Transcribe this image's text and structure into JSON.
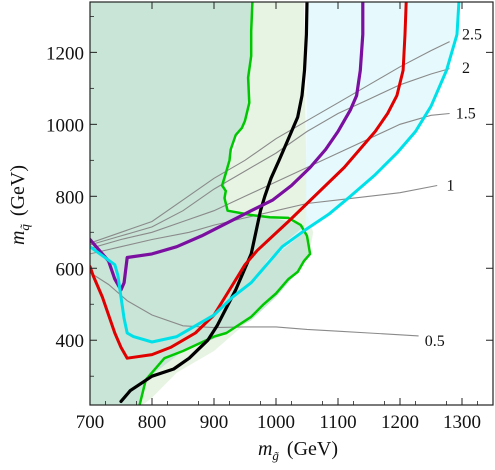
{
  "chart_data": {
    "type": "exclusion-contour",
    "title": "",
    "xlabel": {
      "symbol": "m",
      "sub": "g̃",
      "unit": "(GeV)"
    },
    "ylabel": {
      "symbol": "m",
      "sub": "q̃",
      "unit": "(GeV)"
    },
    "xlim": [
      700,
      1350
    ],
    "ylim": [
      220,
      1340
    ],
    "x_ticks": [
      700,
      800,
      900,
      1000,
      1100,
      1200,
      1300
    ],
    "y_ticks": [
      400,
      600,
      800,
      1000,
      1200
    ],
    "grid": false,
    "regions": [
      {
        "fill": "#9bd0b6",
        "opacity": 0.55,
        "points": [
          [
            700,
            1340
          ],
          [
            962,
            1340
          ],
          [
            960,
            1190
          ],
          [
            957,
            1060
          ],
          [
            950,
            1010
          ],
          [
            935,
            970
          ],
          [
            925,
            900
          ],
          [
            917,
            820
          ],
          [
            922,
            760
          ],
          [
            990,
            742
          ],
          [
            1045,
            720
          ],
          [
            1055,
            640
          ],
          [
            1035,
            590
          ],
          [
            1000,
            520
          ],
          [
            960,
            455
          ],
          [
            910,
            410
          ],
          [
            850,
            370
          ],
          [
            790,
            290
          ],
          [
            780,
            220
          ],
          [
            700,
            220
          ]
        ]
      },
      {
        "fill": "#cce7c2",
        "opacity": 0.45,
        "points": [
          [
            700,
            220
          ],
          [
            785,
            220
          ],
          [
            800,
            240
          ],
          [
            840,
            310
          ],
          [
            900,
            370
          ],
          [
            960,
            460
          ],
          [
            1000,
            530
          ],
          [
            1035,
            600
          ],
          [
            1055,
            650
          ],
          [
            1060,
            700
          ],
          [
            1050,
            750
          ],
          [
            1045,
            1340
          ],
          [
            962,
            1340
          ],
          [
            960,
            1190
          ],
          [
            950,
            1010
          ],
          [
            925,
            900
          ],
          [
            917,
            820
          ],
          [
            922,
            760
          ],
          [
            990,
            742
          ],
          [
            1040,
            720
          ],
          [
            1050,
            640
          ],
          [
            1030,
            590
          ],
          [
            1000,
            530
          ],
          [
            960,
            460
          ],
          [
            910,
            410
          ],
          [
            850,
            370
          ],
          [
            790,
            290
          ],
          [
            780,
            220
          ]
        ]
      },
      {
        "fill": "#e2f8fb",
        "opacity": 0.85,
        "points": [
          [
            1050,
            1340
          ],
          [
            1295,
            1340
          ],
          [
            1292,
            1250
          ],
          [
            1275,
            1150
          ],
          [
            1250,
            1050
          ],
          [
            1225,
            980
          ],
          [
            1195,
            920
          ],
          [
            1160,
            860
          ],
          [
            1120,
            800
          ],
          [
            1080,
            740
          ],
          [
            1045,
            700
          ],
          [
            1010,
            650
          ],
          [
            985,
            610
          ],
          [
            965,
            560
          ],
          [
            985,
            620
          ],
          [
            1020,
            680
          ],
          [
            1048,
            720
          ]
        ]
      }
    ],
    "series": [
      {
        "color": "#00c800",
        "width": 2.5,
        "points": [
          [
            962,
            1340
          ],
          [
            960,
            1260
          ],
          [
            960,
            1190
          ],
          [
            955,
            1130
          ],
          [
            957,
            1060
          ],
          [
            950,
            1010
          ],
          [
            945,
            990
          ],
          [
            935,
            970
          ],
          [
            927,
            930
          ],
          [
            925,
            900
          ],
          [
            920,
            870
          ],
          [
            913,
            830
          ],
          [
            919,
            815
          ],
          [
            917,
            795
          ],
          [
            922,
            760
          ],
          [
            960,
            748
          ],
          [
            990,
            742
          ],
          [
            1020,
            740
          ],
          [
            1040,
            720
          ],
          [
            1050,
            690
          ],
          [
            1055,
            640
          ],
          [
            1045,
            620
          ],
          [
            1035,
            590
          ],
          [
            1020,
            570
          ],
          [
            1000,
            530
          ],
          [
            980,
            500
          ],
          [
            960,
            465
          ],
          [
            920,
            420
          ],
          [
            900,
            410
          ],
          [
            850,
            370
          ],
          [
            820,
            350
          ],
          [
            790,
            290
          ],
          [
            780,
            220
          ]
        ]
      },
      {
        "color": "#000000",
        "width": 3.2,
        "points": [
          [
            1050,
            1340
          ],
          [
            1049,
            1250
          ],
          [
            1046,
            1150
          ],
          [
            1042,
            1080
          ],
          [
            1035,
            1020
          ],
          [
            1020,
            960
          ],
          [
            1005,
            900
          ],
          [
            992,
            850
          ],
          [
            982,
            800
          ],
          [
            975,
            760
          ],
          [
            970,
            720
          ],
          [
            965,
            680
          ],
          [
            960,
            640
          ],
          [
            950,
            600
          ],
          [
            935,
            540
          ],
          [
            920,
            490
          ],
          [
            905,
            440
          ],
          [
            890,
            400
          ],
          [
            860,
            350
          ],
          [
            835,
            320
          ],
          [
            800,
            300
          ],
          [
            765,
            260
          ],
          [
            750,
            230
          ]
        ]
      },
      {
        "color": "#7a0fa0",
        "width": 3.2,
        "points": [
          [
            1140,
            1340
          ],
          [
            1140,
            1250
          ],
          [
            1136,
            1150
          ],
          [
            1130,
            1080
          ],
          [
            1120,
            1040
          ],
          [
            1100,
            980
          ],
          [
            1080,
            930
          ],
          [
            1055,
            880
          ],
          [
            1025,
            830
          ],
          [
            995,
            790
          ],
          [
            960,
            760
          ],
          [
            920,
            725
          ],
          [
            880,
            690
          ],
          [
            840,
            660
          ],
          [
            800,
            640
          ],
          [
            760,
            630
          ],
          [
            755,
            560
          ],
          [
            750,
            540
          ],
          [
            740,
            570
          ],
          [
            730,
            620
          ],
          [
            700,
            680
          ]
        ]
      },
      {
        "color": "#e00000",
        "width": 3.0,
        "points": [
          [
            1210,
            1340
          ],
          [
            1208,
            1250
          ],
          [
            1205,
            1150
          ],
          [
            1195,
            1080
          ],
          [
            1180,
            1030
          ],
          [
            1160,
            980
          ],
          [
            1135,
            930
          ],
          [
            1110,
            880
          ],
          [
            1080,
            830
          ],
          [
            1050,
            780
          ],
          [
            1020,
            730
          ],
          [
            995,
            690
          ],
          [
            970,
            650
          ],
          [
            950,
            610
          ],
          [
            925,
            540
          ],
          [
            900,
            470
          ],
          [
            870,
            420
          ],
          [
            830,
            380
          ],
          [
            800,
            360
          ],
          [
            760,
            350
          ],
          [
            750,
            380
          ],
          [
            740,
            420
          ],
          [
            720,
            520
          ],
          [
            705,
            580
          ],
          [
            700,
            605
          ]
        ]
      },
      {
        "color": "#00e0e8",
        "width": 3.0,
        "points": [
          [
            1295,
            1340
          ],
          [
            1292,
            1250
          ],
          [
            1275,
            1150
          ],
          [
            1250,
            1050
          ],
          [
            1225,
            980
          ],
          [
            1195,
            920
          ],
          [
            1160,
            860
          ],
          [
            1120,
            800
          ],
          [
            1085,
            750
          ],
          [
            1050,
            710
          ],
          [
            1010,
            660
          ],
          [
            985,
            610
          ],
          [
            960,
            560
          ],
          [
            930,
            520
          ],
          [
            900,
            470
          ],
          [
            870,
            440
          ],
          [
            840,
            410
          ],
          [
            800,
            395
          ],
          [
            770,
            410
          ],
          [
            760,
            420
          ],
          [
            755,
            460
          ],
          [
            750,
            520
          ],
          [
            745,
            580
          ],
          [
            740,
            610
          ],
          [
            700,
            660
          ]
        ]
      }
    ],
    "contours": [
      {
        "label": "0.5",
        "label_at": [
          1240,
          400
        ],
        "points": [
          [
            700,
            588
          ],
          [
            730,
            555
          ],
          [
            760,
            510
          ],
          [
            800,
            470
          ],
          [
            850,
            440
          ],
          [
            900,
            435
          ],
          [
            950,
            437
          ],
          [
            1000,
            437
          ],
          [
            1050,
            430
          ],
          [
            1100,
            425
          ],
          [
            1150,
            420
          ],
          [
            1200,
            415
          ],
          [
            1230,
            412
          ]
        ]
      },
      {
        "label": "1",
        "label_at": [
          1275,
          833
        ],
        "points": [
          [
            700,
            640
          ],
          [
            750,
            660
          ],
          [
            800,
            680
          ],
          [
            860,
            700
          ],
          [
            900,
            720
          ],
          [
            950,
            740
          ],
          [
            1000,
            760
          ],
          [
            1050,
            780
          ],
          [
            1100,
            790
          ],
          [
            1150,
            800
          ],
          [
            1200,
            810
          ],
          [
            1260,
            830
          ]
        ]
      },
      {
        "label": "1.5",
        "label_at": [
          1290,
          1033
        ],
        "points": [
          [
            700,
            655
          ],
          [
            750,
            680
          ],
          [
            800,
            700
          ],
          [
            850,
            730
          ],
          [
            900,
            760
          ],
          [
            950,
            800
          ],
          [
            1000,
            840
          ],
          [
            1050,
            880
          ],
          [
            1100,
            920
          ],
          [
            1150,
            960
          ],
          [
            1200,
            1000
          ],
          [
            1250,
            1025
          ],
          [
            1280,
            1030
          ]
        ]
      },
      {
        "label": "2",
        "label_at": [
          1300,
          1160
        ],
        "points": [
          [
            700,
            665
          ],
          [
            750,
            690
          ],
          [
            800,
            715
          ],
          [
            850,
            760
          ],
          [
            900,
            820
          ],
          [
            950,
            870
          ],
          [
            1000,
            920
          ],
          [
            1050,
            980
          ],
          [
            1100,
            1030
          ],
          [
            1150,
            1070
          ],
          [
            1200,
            1110
          ],
          [
            1250,
            1140
          ],
          [
            1280,
            1155
          ]
        ]
      },
      {
        "label": "2.5",
        "label_at": [
          1300,
          1252
        ],
        "points": [
          [
            700,
            670
          ],
          [
            750,
            700
          ],
          [
            800,
            730
          ],
          [
            850,
            790
          ],
          [
            900,
            850
          ],
          [
            950,
            900
          ],
          [
            1000,
            960
          ],
          [
            1050,
            1010
          ],
          [
            1100,
            1060
          ],
          [
            1150,
            1110
          ],
          [
            1200,
            1160
          ],
          [
            1250,
            1205
          ],
          [
            1280,
            1230
          ]
        ]
      }
    ]
  }
}
